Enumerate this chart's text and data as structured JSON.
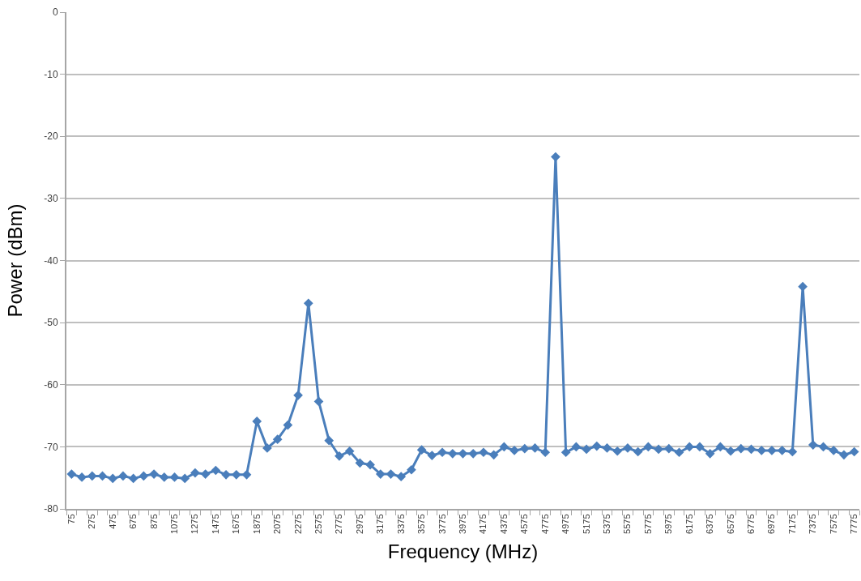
{
  "chart_data": {
    "type": "line",
    "xlabel": "Frequency (MHz)",
    "ylabel": "Power (dBm)",
    "categories": [
      "75",
      null,
      "275",
      null,
      "475",
      null,
      "675",
      null,
      "875",
      null,
      "1075",
      null,
      "1275",
      null,
      "1475",
      null,
      "1675",
      null,
      "1875",
      null,
      "2075",
      null,
      "2275",
      null,
      "2575",
      null,
      "2775",
      null,
      "2975",
      null,
      "3175",
      null,
      "3375",
      null,
      "3575",
      null,
      "3775",
      null,
      "3975",
      null,
      "4175",
      null,
      "4375",
      null,
      "4575",
      null,
      "4775",
      null,
      "4975",
      null,
      "5175",
      null,
      "5375",
      null,
      "5575",
      null,
      "5775",
      null,
      "5975",
      null,
      "6175",
      null,
      "6375",
      null,
      "6575",
      null,
      "6775",
      null,
      "6975",
      null,
      "7175",
      null,
      "7375",
      null,
      "7575",
      null,
      "7775"
    ],
    "series": [
      {
        "color": "#4a7ebb",
        "values": [
          -74.4,
          -74.9,
          -74.7,
          -74.7,
          -75.1,
          -74.7,
          -75.1,
          -74.7,
          -74.4,
          -74.9,
          -74.9,
          -75.1,
          -74.2,
          -74.4,
          -73.8,
          -74.5,
          -74.5,
          -74.5,
          -65.9,
          -70.2,
          -68.8,
          -66.5,
          -61.7,
          -46.9,
          -62.7,
          -69.0,
          -71.5,
          -70.7,
          -72.6,
          -72.9,
          -74.4,
          -74.4,
          -74.8,
          -73.7,
          -70.5,
          -71.4,
          -70.9,
          -71.1,
          -71.1,
          -71.1,
          -70.9,
          -71.3,
          -70.0,
          -70.6,
          -70.3,
          -70.2,
          -70.9,
          -23.3,
          -70.9,
          -70.0,
          -70.4,
          -69.9,
          -70.2,
          -70.7,
          -70.2,
          -70.8,
          -70.0,
          -70.4,
          -70.3,
          -70.9,
          -70.0,
          -70.0,
          -71.1,
          -70.0,
          -70.7,
          -70.3,
          -70.4,
          -70.6,
          -70.6,
          -70.6,
          -70.8,
          -44.2,
          -69.7,
          -70.0,
          -70.6,
          -71.3,
          -70.8
        ]
      }
    ],
    "ylim": [
      -80,
      0
    ],
    "yticks": [
      -80,
      -70,
      -60,
      -50,
      -40,
      -30,
      -20,
      -10,
      0
    ],
    "grid": "y",
    "marker": "diamond",
    "line_style": "solid"
  }
}
